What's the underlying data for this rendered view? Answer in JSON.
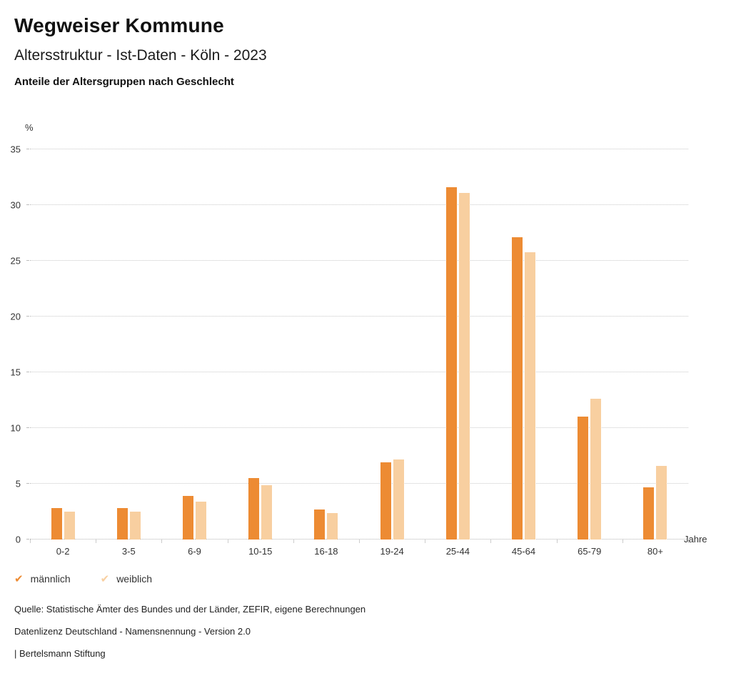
{
  "header": {
    "title": "Wegweiser Kommune",
    "subtitle": "Altersstruktur - Ist-Daten - Köln - 2023",
    "chart_title": "Anteile der Altersgruppen nach Geschlecht"
  },
  "chart_data": {
    "type": "bar",
    "title": "Anteile der Altersgruppen nach Geschlecht",
    "categories": [
      "0-2",
      "3-5",
      "6-9",
      "10-15",
      "16-18",
      "19-24",
      "25-44",
      "45-64",
      "65-79",
      "80+"
    ],
    "series": [
      {
        "name": "männlich",
        "color": "#ED8B33",
        "values": [
          2.8,
          2.8,
          3.9,
          5.5,
          2.7,
          6.9,
          31.6,
          27.1,
          11.0,
          4.7
        ]
      },
      {
        "name": "weiblich",
        "color": "#F8CFA0",
        "values": [
          2.5,
          2.5,
          3.4,
          4.9,
          2.4,
          7.2,
          31.1,
          25.8,
          12.6,
          6.6
        ]
      }
    ],
    "ylabel": "%",
    "xlabel": "Jahre",
    "ylim": [
      0,
      35
    ],
    "yticks": [
      0,
      5,
      10,
      15,
      20,
      25,
      30,
      35
    ],
    "grid": true,
    "legend_position": "bottom-left"
  },
  "footer": {
    "source": "Quelle: Statistische Ämter des Bundes und der Länder, ZEFIR, eigene Berechnungen",
    "license": "Datenlizenz Deutschland - Namensnennung - Version 2.0",
    "attribution": "| Bertelsmann Stiftung"
  }
}
